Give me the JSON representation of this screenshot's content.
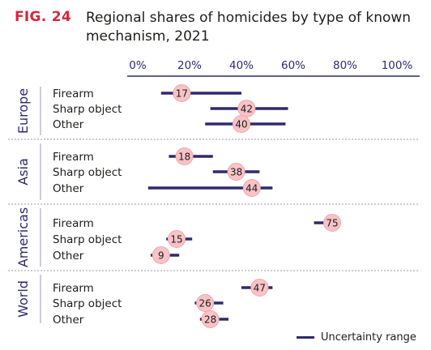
{
  "figure": {
    "label": "FIG. 24",
    "title": "Regional shares of homicides by type of known mechanism, 2021"
  },
  "legend": {
    "label": "Uncertainty range"
  },
  "chart_data": {
    "type": "dot-range",
    "title": "Regional shares of homicides by type of known mechanism, 2021",
    "x_ticks": [
      "0%",
      "20%",
      "40%",
      "60%",
      "80%",
      "100%"
    ],
    "xlim": [
      0,
      100
    ],
    "colors": {
      "range": "#2e2a6e",
      "dot": "#f7c3c6",
      "dot_stroke": "#f2a6ab",
      "divider": "#9a98b8"
    },
    "groups": [
      {
        "name": "Europe",
        "rows": [
          {
            "category": "Firearm",
            "value": 17,
            "low": 9,
            "high": 40
          },
          {
            "category": "Sharp object",
            "value": 42,
            "low": 28,
            "high": 58
          },
          {
            "category": "Other",
            "value": 40,
            "low": 26,
            "high": 57
          }
        ]
      },
      {
        "name": "Asia",
        "rows": [
          {
            "category": "Firearm",
            "value": 18,
            "low": 12,
            "high": 29
          },
          {
            "category": "Sharp object",
            "value": 38,
            "low": 29,
            "high": 47
          },
          {
            "category": "Other",
            "value": 44,
            "low": 4,
            "high": 52
          }
        ]
      },
      {
        "name": "Americas",
        "rows": [
          {
            "category": "Firearm",
            "value": 75,
            "low": 68,
            "high": 77
          },
          {
            "category": "Sharp object",
            "value": 15,
            "low": 11,
            "high": 21
          },
          {
            "category": "Other",
            "value": 9,
            "low": 5,
            "high": 16
          }
        ]
      },
      {
        "name": "World",
        "rows": [
          {
            "category": "Firearm",
            "value": 47,
            "low": 40,
            "high": 52
          },
          {
            "category": "Sharp object",
            "value": 26,
            "low": 22,
            "high": 33
          },
          {
            "category": "Other",
            "value": 28,
            "low": 24,
            "high": 35
          }
        ]
      }
    ]
  }
}
